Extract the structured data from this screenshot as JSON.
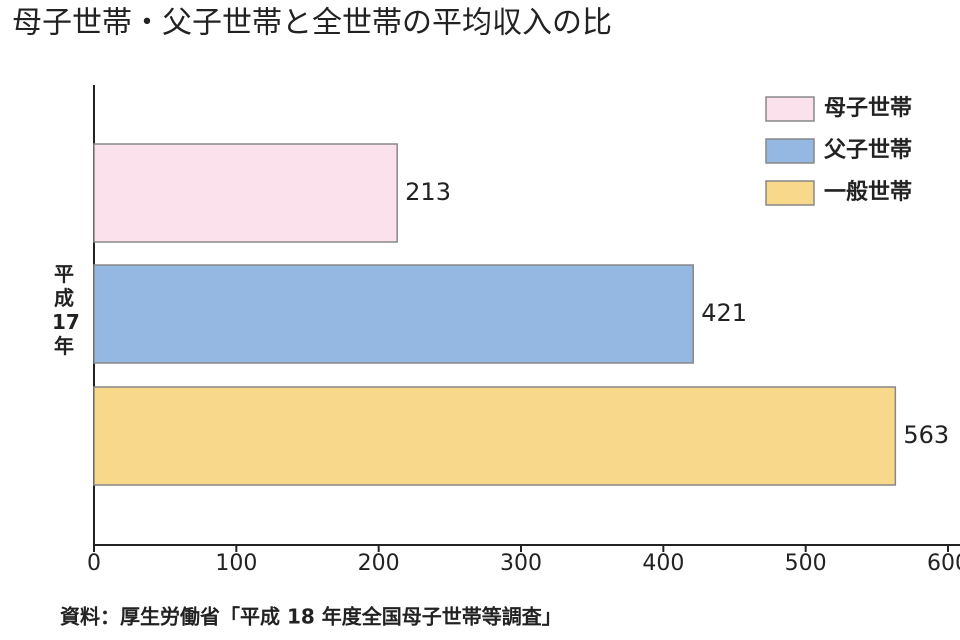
{
  "chart_data": {
    "type": "bar",
    "orientation": "horizontal",
    "title": "母子世帯・父子世帯と全世帯の平均収入の比",
    "categories": [
      "平成17年"
    ],
    "series": [
      {
        "name": "母子世帯",
        "color": "#fbe1ec",
        "values": [
          213
        ]
      },
      {
        "name": "父子世帯",
        "color": "#94b8e2",
        "values": [
          421
        ]
      },
      {
        "name": "一般世帯",
        "color": "#f8d98b",
        "values": [
          563
        ]
      }
    ],
    "xlim": [
      0,
      600
    ],
    "xticks": [
      0,
      100,
      200,
      300,
      400,
      500,
      600
    ],
    "legend": "top-right",
    "source": "資料：厚生労働省「平成 18 年度全国母子世帯等調査」"
  }
}
